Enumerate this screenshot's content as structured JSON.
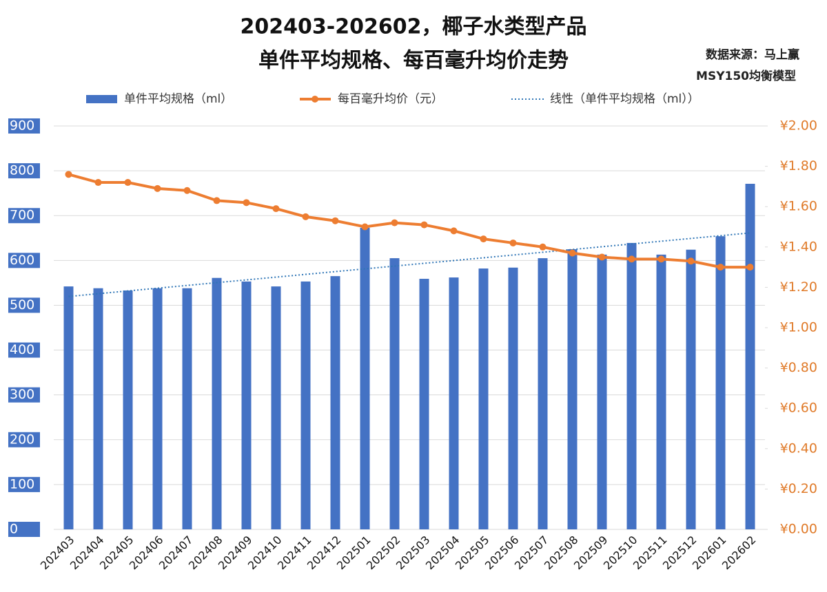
{
  "chart_data": {
    "type": "bar_line",
    "title": "202403-202602，椰子水类型产品",
    "subtitle": "单件平均规格、每百毫升均价走势",
    "annotations": [
      "数据来源：马上赢",
      "MSY150均衡模型"
    ],
    "categories": [
      "202403",
      "202404",
      "202405",
      "202406",
      "202407",
      "202408",
      "202409",
      "202410",
      "202411",
      "202412",
      "202501",
      "202502",
      "202503",
      "202504",
      "202505",
      "202506",
      "202507",
      "202508",
      "202509",
      "202510",
      "202511",
      "202512",
      "202601",
      "202602"
    ],
    "series": [
      {
        "name": "单件平均规格（ml）",
        "type": "bar",
        "color": "#4472c4",
        "axis": "y",
        "values": [
          542,
          538,
          533,
          538,
          538,
          561,
          553,
          542,
          553,
          565,
          673,
          605,
          559,
          562,
          582,
          584,
          605,
          625,
          613,
          639,
          613,
          624,
          654,
          771
        ]
      },
      {
        "name": "每百毫升均价（元）",
        "type": "line",
        "color": "#ed7d31",
        "axis": "y2",
        "values": [
          1.76,
          1.72,
          1.72,
          1.69,
          1.68,
          1.63,
          1.62,
          1.59,
          1.55,
          1.53,
          1.5,
          1.52,
          1.51,
          1.48,
          1.44,
          1.42,
          1.4,
          1.37,
          1.35,
          1.34,
          1.34,
          1.33,
          1.3,
          1.3
        ]
      }
    ],
    "trendline": {
      "name": "线性（单件平均规格（ml））",
      "series": 0,
      "color": "#2e75b6"
    },
    "ylim": [
      0,
      900
    ],
    "yticks": [
      0,
      100,
      200,
      300,
      400,
      500,
      600,
      700,
      800,
      900
    ],
    "y2lim": [
      0,
      2
    ],
    "y2ticks": [
      {
        "value": 0,
        "label": "¥0.00"
      },
      {
        "value": 0.2,
        "label": "¥0.20"
      },
      {
        "value": 0.4,
        "label": "¥0.40"
      },
      {
        "value": 0.6,
        "label": "¥0.60"
      },
      {
        "value": 0.8,
        "label": "¥0.80"
      },
      {
        "value": 1,
        "label": "¥1.00"
      },
      {
        "value": 1.2,
        "label": "¥1.20"
      },
      {
        "value": 1.4,
        "label": "¥1.40"
      },
      {
        "value": 1.6,
        "label": "¥1.60"
      },
      {
        "value": 1.8,
        "label": "¥1.80"
      },
      {
        "value": 2,
        "label": "¥2.00"
      }
    ],
    "grid": true
  }
}
